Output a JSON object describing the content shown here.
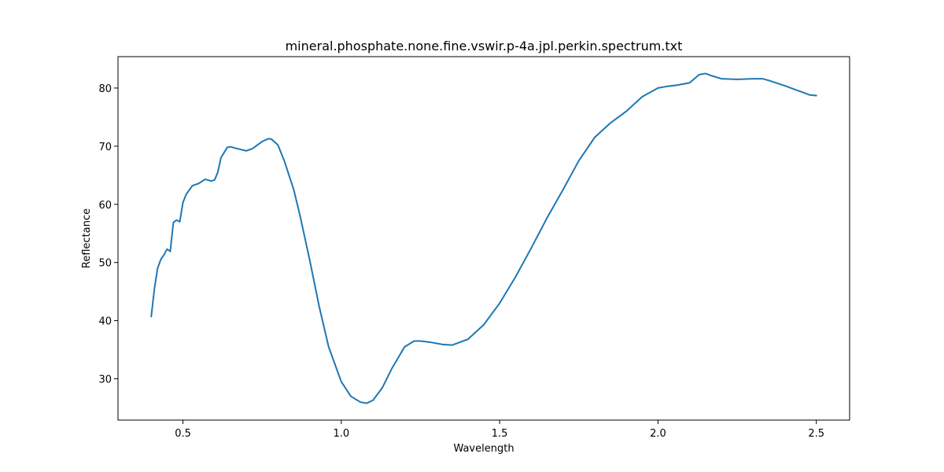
{
  "chart_data": {
    "type": "line",
    "title": "mineral.phosphate.none.fine.vswir.p-4a.jpl.perkin.spectrum.txt",
    "xlabel": "Wavelength",
    "ylabel": "Reflectance",
    "xlim": [
      0.295,
      2.605
    ],
    "ylim": [
      22.9,
      85.4
    ],
    "x_ticks": [
      0.5,
      1.0,
      1.5,
      2.0,
      2.5
    ],
    "x_tick_labels": [
      "0.5",
      "1.0",
      "1.5",
      "2.0",
      "2.5"
    ],
    "y_ticks": [
      30,
      40,
      50,
      60,
      70,
      80
    ],
    "y_tick_labels": [
      "30",
      "40",
      "50",
      "60",
      "70",
      "80"
    ],
    "grid": false,
    "legend": "none",
    "series": [
      {
        "color": "#1f77b4",
        "x": [
          0.4,
          0.41,
          0.42,
          0.43,
          0.44,
          0.45,
          0.46,
          0.465,
          0.47,
          0.48,
          0.49,
          0.5,
          0.51,
          0.53,
          0.55,
          0.57,
          0.59,
          0.6,
          0.61,
          0.62,
          0.64,
          0.65,
          0.67,
          0.7,
          0.72,
          0.75,
          0.77,
          0.78,
          0.8,
          0.82,
          0.85,
          0.87,
          0.9,
          0.93,
          0.96,
          1.0,
          1.03,
          1.06,
          1.08,
          1.1,
          1.13,
          1.16,
          1.2,
          1.23,
          1.25,
          1.28,
          1.32,
          1.35,
          1.4,
          1.45,
          1.5,
          1.55,
          1.6,
          1.65,
          1.7,
          1.75,
          1.8,
          1.85,
          1.9,
          1.95,
          2.0,
          2.03,
          2.06,
          2.1,
          2.13,
          2.15,
          2.17,
          2.2,
          2.25,
          2.3,
          2.33,
          2.35,
          2.4,
          2.45,
          2.48,
          2.5
        ],
        "y": [
          40.7,
          45.5,
          49.0,
          50.5,
          51.3,
          52.3,
          51.9,
          54.5,
          56.9,
          57.3,
          57.0,
          60.3,
          61.7,
          63.2,
          63.6,
          64.3,
          64.0,
          64.2,
          65.5,
          68.0,
          69.8,
          69.9,
          69.6,
          69.2,
          69.6,
          70.8,
          71.3,
          71.2,
          70.2,
          67.5,
          62.5,
          58.0,
          50.5,
          42.5,
          35.5,
          29.5,
          27.0,
          26.0,
          25.8,
          26.3,
          28.5,
          31.8,
          35.5,
          36.5,
          36.5,
          36.3,
          35.9,
          35.8,
          36.8,
          39.3,
          43.0,
          47.5,
          52.5,
          57.7,
          62.5,
          67.5,
          71.5,
          74.0,
          76.0,
          78.5,
          80.0,
          80.3,
          80.5,
          80.9,
          82.3,
          82.5,
          82.1,
          81.6,
          81.5,
          81.6,
          81.6,
          81.3,
          80.4,
          79.4,
          78.8,
          78.7
        ]
      }
    ]
  }
}
